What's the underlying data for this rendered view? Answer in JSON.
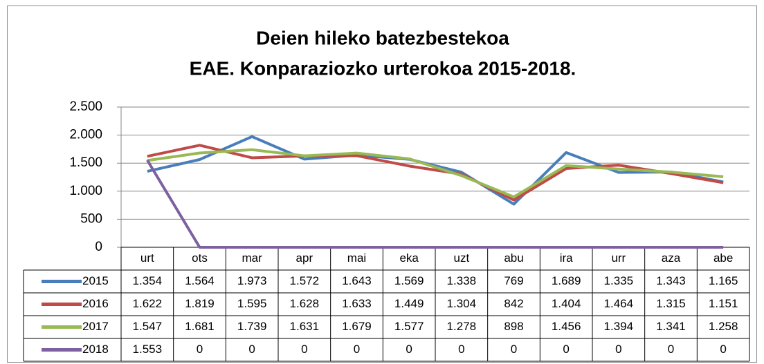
{
  "chart_data": {
    "type": "line",
    "title": [
      "Deien hileko batezbestekoa",
      "EAE. Konparaziozko urterokoa 2015-2018."
    ],
    "categories": [
      "urt",
      "ots",
      "mar",
      "apr",
      "mai",
      "eka",
      "uzt",
      "abu",
      "ira",
      "urr",
      "aza",
      "abe"
    ],
    "series": [
      {
        "name": "2015",
        "color": "#4a7ebb",
        "values": [
          1354,
          1564,
          1973,
          1572,
          1643,
          1569,
          1338,
          769,
          1689,
          1335,
          1343,
          1165
        ],
        "value_labels": [
          "1.354",
          "1.564",
          "1.973",
          "1.572",
          "1.643",
          "1.569",
          "1.338",
          "769",
          "1.689",
          "1.335",
          "1.343",
          "1.165"
        ]
      },
      {
        "name": "2016",
        "color": "#be4b48",
        "values": [
          1622,
          1819,
          1595,
          1628,
          1633,
          1449,
          1304,
          842,
          1404,
          1464,
          1315,
          1151
        ],
        "value_labels": [
          "1.622",
          "1.819",
          "1.595",
          "1.628",
          "1.633",
          "1.449",
          "1.304",
          "842",
          "1.404",
          "1.464",
          "1.315",
          "1.151"
        ]
      },
      {
        "name": "2017",
        "color": "#98b954",
        "values": [
          1547,
          1681,
          1739,
          1631,
          1679,
          1577,
          1278,
          898,
          1456,
          1394,
          1341,
          1258
        ],
        "value_labels": [
          "1.547",
          "1.681",
          "1.739",
          "1.631",
          "1.679",
          "1.577",
          "1.278",
          "898",
          "1.456",
          "1.394",
          "1.341",
          "1.258"
        ]
      },
      {
        "name": "2018",
        "color": "#7d60a0",
        "values": [
          1553,
          0,
          0,
          0,
          0,
          0,
          0,
          0,
          0,
          0,
          0,
          0
        ],
        "value_labels": [
          "1.553",
          "0",
          "0",
          "0",
          "0",
          "0",
          "0",
          "0",
          "0",
          "0",
          "0",
          "0"
        ]
      }
    ],
    "ylim": [
      0,
      2500
    ],
    "yticks": [
      0,
      500,
      {
        "value": 1000,
        "label": "1.000"
      },
      {
        "value": 1500,
        "label": "1.500"
      },
      {
        "value": 2000,
        "label": "2.000"
      },
      {
        "value": 2500,
        "label": "2.500"
      }
    ],
    "grid": true
  }
}
